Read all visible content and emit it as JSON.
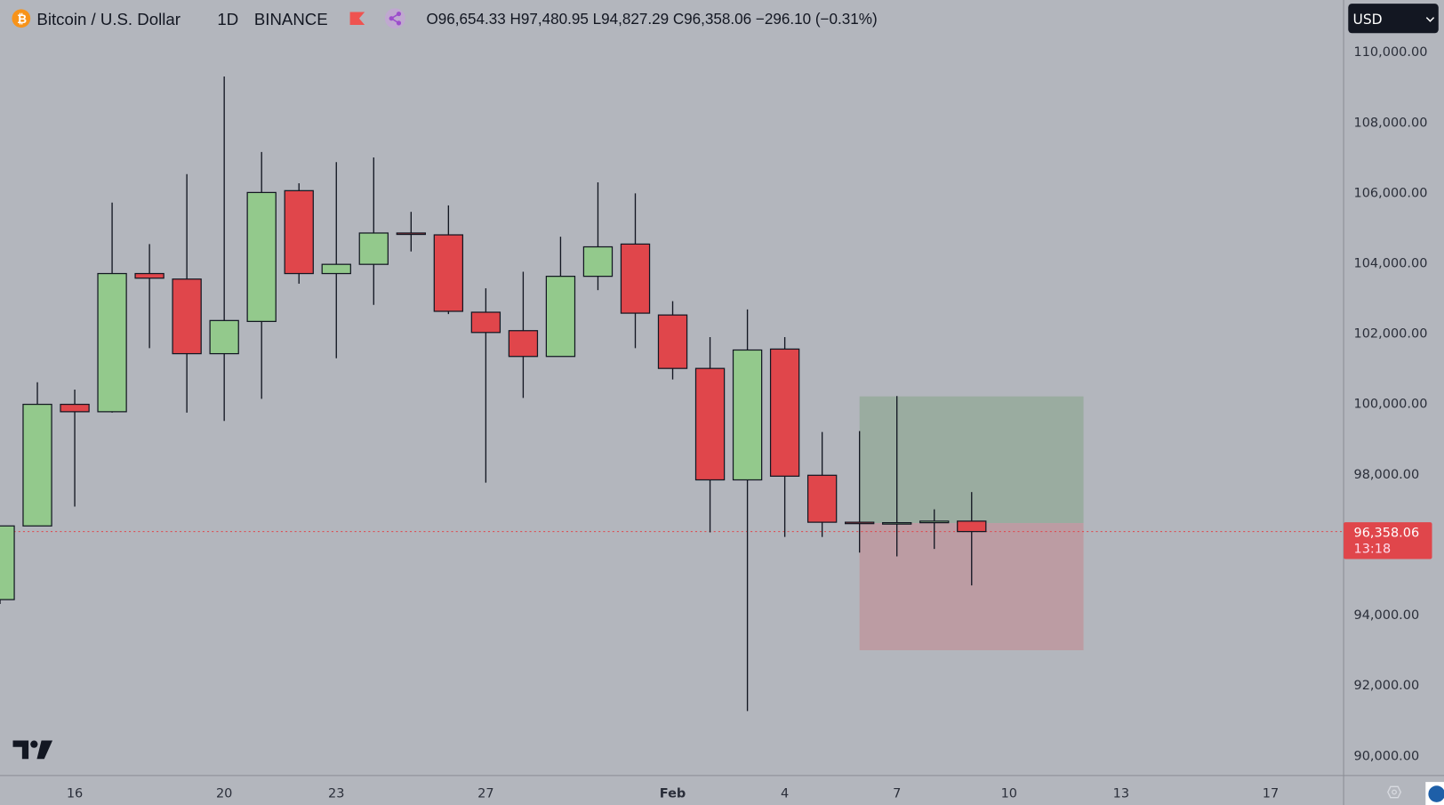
{
  "header": {
    "symbol": "Bitcoin / U.S. Dollar",
    "interval": "1D",
    "exchange": "BINANCE",
    "ohlc": "O96,654.33 H97,480.95 L94,827.29 C96,358.06 −296.10 (−0.31%)",
    "icons": [
      "bitcoin-logo-icon",
      "flag-icon",
      "share-icon"
    ]
  },
  "currency_button": "USD",
  "current_price": {
    "label": "96,358.06",
    "countdown": "13:18",
    "value": 96358.06
  },
  "colors": {
    "up": "#93c98c",
    "down": "#e0464b",
    "background": "#b3b6bd",
    "profit_zone": "#9aaca0",
    "loss_zone": "#bc9ca3"
  },
  "chart_data": {
    "type": "candlestick",
    "title": "Bitcoin / U.S. Dollar",
    "ylim": [
      90000,
      110000
    ],
    "yticks": [
      "110,000.00",
      "108,000.00",
      "106,000.00",
      "104,000.00",
      "102,000.00",
      "100,000.00",
      "98,000.00",
      "96,000.00",
      "94,000.00",
      "92,000.00",
      "90,000.00"
    ],
    "ytick_values": [
      110000,
      108000,
      106000,
      104000,
      102000,
      100000,
      98000,
      96000,
      94000,
      92000,
      90000
    ],
    "xticks": [
      {
        "label": "16",
        "date": "Jan 16"
      },
      {
        "label": "20",
        "date": "Jan 20"
      },
      {
        "label": "23",
        "date": "Jan 23"
      },
      {
        "label": "27",
        "date": "Jan 27"
      },
      {
        "label": "Feb",
        "date": "Feb 1"
      },
      {
        "label": "4",
        "date": "Feb 4"
      },
      {
        "label": "7",
        "date": "Feb 7"
      },
      {
        "label": "10",
        "date": "Feb 10"
      },
      {
        "label": "13",
        "date": "Feb 13"
      },
      {
        "label": "17",
        "date": "Feb 17"
      }
    ],
    "candles": [
      [
        "Jan 14",
        94424,
        96518,
        94300,
        96518
      ],
      [
        "Jan 15",
        96518,
        100602,
        96518,
        99974
      ],
      [
        "Jan 16",
        99974,
        100393,
        97068,
        99764
      ],
      [
        "Jan 17",
        99764,
        105707,
        99738,
        103691
      ],
      [
        "Jan 18",
        103691,
        104529,
        101571,
        103560
      ],
      [
        "Jan 19",
        103534,
        106518,
        99738,
        101414
      ],
      [
        "Jan 20",
        101414,
        109293,
        99503,
        102356
      ],
      [
        "Jan 21",
        102330,
        107147,
        100131,
        105995
      ],
      [
        "Jan 22",
        106047,
        106257,
        103403,
        103691
      ],
      [
        "Jan 23",
        103691,
        106859,
        101283,
        103953
      ],
      [
        "Jan 24",
        103953,
        106990,
        102801,
        104843
      ],
      [
        "Jan 25",
        104843,
        105445,
        104319,
        104817
      ],
      [
        "Jan 26",
        104791,
        105628,
        102539,
        102618
      ],
      [
        "Jan 27",
        102592,
        103272,
        97749,
        102016
      ],
      [
        "Jan 28",
        102068,
        103743,
        100157,
        101335
      ],
      [
        "Jan 29",
        101335,
        104738,
        101335,
        103613
      ],
      [
        "Jan 30",
        103613,
        106283,
        103220,
        104450
      ],
      [
        "Jan 31",
        104529,
        105969,
        101571,
        102565
      ],
      [
        "Feb 1",
        102513,
        102906,
        100681,
        100995
      ],
      [
        "Feb 2",
        100995,
        101885,
        96335,
        97827
      ],
      [
        "Feb 3",
        97827,
        102670,
        91257,
        101518
      ],
      [
        "Feb 4",
        101545,
        101885,
        96204,
        97932
      ],
      [
        "Feb 5",
        97958,
        99188,
        96204,
        96623
      ],
      [
        "Feb 6",
        96623,
        99215,
        95759,
        96597
      ],
      [
        "Feb 7",
        96597,
        100209,
        95654,
        96610
      ],
      [
        "Feb 8",
        96610,
        96990,
        95864,
        96654
      ],
      [
        "Feb 9",
        96654.33,
        97480.95,
        94827.29,
        96358.06
      ]
    ],
    "candle_fields": [
      "date",
      "open",
      "high",
      "low",
      "close"
    ],
    "position_tool": {
      "start": "Feb 6",
      "end": "Feb 11",
      "entry": 96600,
      "target": 100200,
      "stop": 92985
    }
  }
}
